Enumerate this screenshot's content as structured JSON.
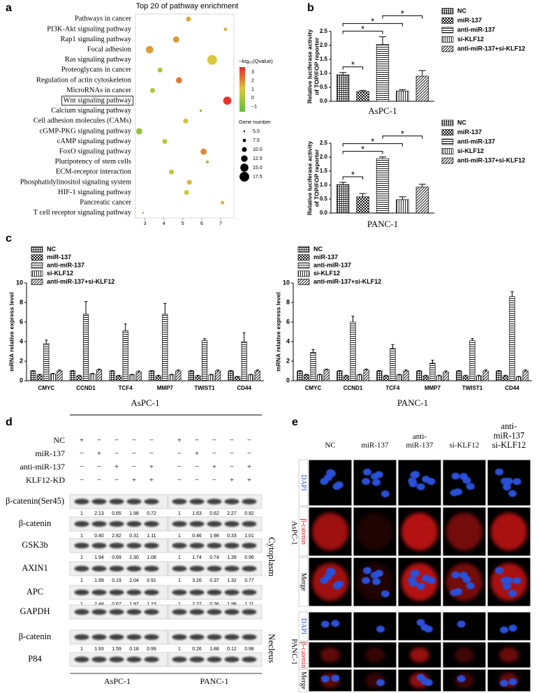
{
  "panel_labels": [
    "a",
    "b",
    "c",
    "d",
    "e"
  ],
  "chart_data": [
    {
      "type": "bubble",
      "title": "Top 20 of pathway enrichment",
      "categories": [
        "Pathways in cancer",
        "PI3K-Akt signaling pathway",
        "Rap1 signaling pathway",
        "Focal adhesion",
        "Ras signaling pathway",
        "Proteoglycans in cancer",
        "Regulation of actin cytoskeleton",
        "MicroRNAs in cancer",
        "Wnt signaling pathway",
        "Calcium signaling pathway",
        "Cell adhesion molecules (CAMs)",
        "cGMP-PKG signaling pathway",
        "cAMP signaling pathway",
        "FoxO signaling pathway",
        "Pluripotency of stem cells",
        "ECM-receptor interaction",
        "Phosphatidylinositol signaling system",
        "HIF-1 signaling pathway",
        "Pancreatic cancer",
        "T cell receptor signaling pathway"
      ],
      "x": [
        5.3,
        7.25,
        4.65,
        3.25,
        6.55,
        3.8,
        4.8,
        3.4,
        7.35,
        5.95,
        5.15,
        2.7,
        4.05,
        6.1,
        6.3,
        4.4,
        5.35,
        5.2,
        7.1,
        2.9
      ],
      "size": [
        10,
        7.5,
        12,
        14,
        17.5,
        10,
        12,
        10,
        15,
        6,
        10,
        12,
        10,
        12,
        7,
        10,
        10,
        10,
        8,
        5
      ],
      "color_values": [
        1.5,
        1.5,
        1.8,
        1.7,
        1.0,
        0,
        2.2,
        0,
        3.4,
        -0.8,
        1.2,
        -0.5,
        0.3,
        2.0,
        -0.5,
        0.5,
        1.3,
        0.7,
        1.4,
        -1.5
      ],
      "highlight": 8,
      "xlim": [
        2.5,
        7.7
      ],
      "xticks": [
        3,
        4,
        5,
        6,
        7
      ],
      "color_label": "−log₁₀(Qvalue)",
      "color_lim": [
        -1.6,
        3.6
      ],
      "color_ticks": [
        3,
        2,
        1,
        0,
        {
          "value": -1,
          "label": "−1"
        }
      ],
      "colors": [
        "#5cbf3e",
        "#d9c93a",
        "#e8242a"
      ],
      "size_label": "Gene number",
      "size_ticks": [
        {
          "value": 5,
          "label": "5.0"
        },
        {
          "value": 7.5,
          "label": "7.5"
        },
        {
          "value": 10,
          "label": "10.0"
        },
        {
          "value": 12.5,
          "label": "12.5"
        },
        {
          "value": 15,
          "label": "15.0"
        },
        {
          "value": 17.5,
          "label": "17.5"
        }
      ]
    },
    {
      "type": "bar",
      "categories": [
        "AsPC-1"
      ],
      "y_label": [
        "Relative luciferase activity",
        "of TOP/FOP reporter"
      ],
      "ylim": [
        0,
        2.5
      ],
      "yticks": [
        {
          "value": 0,
          "label": "0.0"
        },
        {
          "value": 0.5,
          "label": "0.5"
        },
        {
          "value": 1,
          "label": "1.0"
        },
        {
          "value": 1.5,
          "label": "1.5"
        },
        {
          "value": 2,
          "label": "2.0"
        },
        {
          "value": 2.5,
          "label": "2.5"
        }
      ],
      "series": [
        {
          "name": "NC",
          "pattern": "crosshatch",
          "values": [
            0.95
          ],
          "errors": [
            0.08
          ]
        },
        {
          "name": "miR-137",
          "pattern": "checker",
          "values": [
            0.35
          ],
          "errors": [
            0.04
          ]
        },
        {
          "name": "anti-miR-137",
          "pattern": "hlines",
          "values": [
            2.03
          ],
          "errors": [
            0.28
          ]
        },
        {
          "name": "si-KLF12",
          "pattern": "vlines",
          "values": [
            0.37
          ],
          "errors": [
            0.05
          ]
        },
        {
          "name": "anti-miR-137+si-KLF12",
          "pattern": "diag",
          "values": [
            0.9
          ],
          "errors": [
            0.2
          ]
        }
      ],
      "significance": [
        {
          "pair": [
            0,
            1
          ],
          "label": "*"
        },
        {
          "pair": [
            0,
            2
          ],
          "label": "*"
        },
        {
          "pair": [
            0,
            3
          ],
          "label": "*"
        },
        {
          "pair": [
            2,
            4
          ],
          "label": "*"
        }
      ]
    },
    {
      "type": "bar",
      "categories": [
        "PANC-1"
      ],
      "y_label": [
        "Relative luciferase activity",
        "of TOP/FOP reporter"
      ],
      "ylim": [
        0,
        2.5
      ],
      "yticks": [
        {
          "value": 0,
          "label": "0.0"
        },
        {
          "value": 0.5,
          "label": "0.5"
        },
        {
          "value": 1,
          "label": "1.0"
        },
        {
          "value": 1.5,
          "label": "1.5"
        },
        {
          "value": 2,
          "label": "2.0"
        },
        {
          "value": 2.5,
          "label": "2.5"
        }
      ],
      "series": [
        {
          "name": "NC",
          "pattern": "crosshatch",
          "values": [
            1.02
          ],
          "errors": [
            0.08
          ]
        },
        {
          "name": "miR-137",
          "pattern": "checker",
          "values": [
            0.58
          ],
          "errors": [
            0.12
          ]
        },
        {
          "name": "anti-miR-137",
          "pattern": "hlines",
          "values": [
            1.95
          ],
          "errors": [
            0.06
          ]
        },
        {
          "name": "si-KLF12",
          "pattern": "vlines",
          "values": [
            0.48
          ],
          "errors": [
            0.1
          ]
        },
        {
          "name": "anti-miR-137+si-KLF12",
          "pattern": "diag",
          "values": [
            0.93
          ],
          "errors": [
            0.1
          ]
        }
      ],
      "significance": [
        {
          "pair": [
            0,
            1
          ],
          "label": "*"
        },
        {
          "pair": [
            0,
            2
          ],
          "label": "*"
        },
        {
          "pair": [
            0,
            3
          ],
          "label": "*"
        },
        {
          "pair": [
            2,
            4
          ],
          "label": "*"
        }
      ]
    },
    {
      "type": "bar",
      "categories": [
        "CMYC",
        "CCND1",
        "TCF4",
        "MMP7",
        "TWIST1",
        "CD44"
      ],
      "x_label": "AsPC-1",
      "y_label": "mRNA relative express level",
      "ylim": [
        0,
        10
      ],
      "yticks": [
        0,
        2,
        4,
        6,
        8,
        10
      ],
      "series": [
        {
          "name": "NC",
          "pattern": "crosshatch",
          "values": [
            1,
            1,
            1,
            1,
            1,
            1
          ],
          "errors": [
            0.04,
            0.04,
            0.04,
            0.04,
            0.04,
            0.04
          ]
        },
        {
          "name": "miR-137",
          "pattern": "checker",
          "values": [
            0.6,
            0.5,
            0.5,
            0.5,
            0.5,
            0.4
          ],
          "errors": [
            0.05,
            0.05,
            0.05,
            0.05,
            0.05,
            0.05
          ]
        },
        {
          "name": "anti-miR-137",
          "pattern": "hlines",
          "values": [
            3.8,
            6.8,
            5.1,
            6.8,
            4.1,
            4.0
          ],
          "errors": [
            0.35,
            1.3,
            0.7,
            1.1,
            0.2,
            0.9
          ]
        },
        {
          "name": "si-KLF12",
          "pattern": "vlines",
          "values": [
            0.7,
            0.7,
            0.6,
            0.6,
            0.6,
            0.6
          ],
          "errors": [
            0.05,
            0.05,
            0.05,
            0.05,
            0.05,
            0.05
          ]
        },
        {
          "name": "anti-miR-137+si-KLF12",
          "pattern": "diag",
          "values": [
            1.0,
            1.1,
            0.9,
            1.0,
            1.0,
            1.0
          ],
          "errors": [
            0.1,
            0.1,
            0.1,
            0.1,
            0.1,
            0.1
          ]
        }
      ]
    },
    {
      "type": "bar",
      "categories": [
        "CMYC",
        "CCND1",
        "TCF4",
        "MMP7",
        "TWIST1",
        "CD44"
      ],
      "x_label": "PANC-1",
      "y_label": "mRNA relative express level",
      "ylim": [
        0,
        10
      ],
      "yticks": [
        0,
        2,
        4,
        6,
        8,
        10
      ],
      "series": [
        {
          "name": "NC",
          "pattern": "crosshatch",
          "values": [
            1,
            1,
            1,
            1,
            1,
            1
          ],
          "errors": [
            0.04,
            0.04,
            0.04,
            0.04,
            0.04,
            0.04
          ]
        },
        {
          "name": "miR-137",
          "pattern": "checker",
          "values": [
            0.6,
            0.5,
            0.5,
            0.5,
            0.5,
            0.5
          ],
          "errors": [
            0.05,
            0.05,
            0.05,
            0.05,
            0.05,
            0.05
          ]
        },
        {
          "name": "anti-miR-137",
          "pattern": "hlines",
          "values": [
            2.9,
            6.0,
            3.3,
            1.8,
            4.1,
            8.6
          ],
          "errors": [
            0.3,
            0.6,
            0.4,
            0.3,
            0.2,
            0.5
          ]
        },
        {
          "name": "si-KLF12",
          "pattern": "vlines",
          "values": [
            0.6,
            0.6,
            0.6,
            0.5,
            0.5,
            0.4
          ],
          "errors": [
            0.05,
            0.05,
            0.05,
            0.05,
            0.05,
            0.05
          ]
        },
        {
          "name": "anti-miR-137+si-KLF12",
          "pattern": "diag",
          "values": [
            1.1,
            1.1,
            1.0,
            0.9,
            1.0,
            1.0
          ],
          "errors": [
            0.1,
            0.1,
            0.1,
            0.1,
            0.1,
            0.1
          ]
        }
      ]
    }
  ],
  "western_blot": {
    "conditions": [
      {
        "name": "NC",
        "signs": [
          "+",
          "−",
          "−",
          "−",
          "−",
          "+",
          "−",
          "−",
          "−",
          "−"
        ]
      },
      {
        "name": "miR-137",
        "signs": [
          "−",
          "+",
          "−",
          "−",
          "−",
          "−",
          "+",
          "−",
          "−",
          "−"
        ]
      },
      {
        "name": "anti-miR-137",
        "signs": [
          "−",
          "−",
          "+",
          "−",
          "+",
          "−",
          "−",
          "+",
          "−",
          "+"
        ]
      },
      {
        "name": "KLF12-KD",
        "signs": [
          "−",
          "−",
          "−",
          "+",
          "+",
          "−",
          "−",
          "−",
          "+",
          "+"
        ]
      }
    ],
    "sections": [
      {
        "fraction": "Cytoplasm",
        "rows": [
          {
            "name": "β-catenin(Ser45)",
            "values": [
              "1",
              "2.13",
              "0.65",
              "1.98",
              "0.72",
              "1",
              "1.63",
              "0.62",
              "2.27",
              "0.92"
            ]
          },
          {
            "name": "β-catenin",
            "values": [
              "1",
              "0.40",
              "2.82",
              "0.31",
              "1.11",
              "1",
              "0.46",
              "1.98",
              "0.33",
              "1.01"
            ]
          },
          {
            "name": "GSK3b",
            "values": [
              "1",
              "1.94",
              "0.69",
              "1.30",
              "1.08",
              "1",
              "1.74",
              "0.74",
              "1.39",
              "0.96"
            ]
          },
          {
            "name": "AXIN1",
            "values": [
              "1",
              "1.99",
              "0.19",
              "2.04",
              "0.91",
              "1",
              "3.26",
              "0.37",
              "1.32",
              "0.77"
            ]
          },
          {
            "name": "APC",
            "values": [
              "1",
              "2.48",
              "0.67",
              "1.97",
              "1.23",
              "1",
              "2.22",
              "0.36",
              "1.98",
              "1.11"
            ]
          },
          {
            "name": "GAPDH"
          }
        ]
      },
      {
        "fraction": "Necleus",
        "rows": [
          {
            "name": "β-catenin",
            "values": [
              "1",
              "1.93",
              "1.59",
              "0.18",
              "0.99",
              "1",
              "0.26",
              "1.88",
              "0.12",
              "0.98"
            ]
          },
          {
            "name": "P84"
          }
        ]
      }
    ],
    "cell_lines": [
      "AsPC-1",
      "PANC-1"
    ]
  },
  "immunofluorescence": {
    "columns": [
      [
        "NC"
      ],
      [
        "miR-137"
      ],
      [
        "anti-",
        "miR-137"
      ],
      [
        "si-KLF12"
      ],
      [
        "anti-",
        "miR-137",
        "si-KLF12"
      ]
    ],
    "groups": [
      {
        "cell_line": "AsPC-1",
        "rows": [
          "DAPI",
          "β-catenin",
          "Merge"
        ]
      },
      {
        "cell_line": "PANC-1",
        "rows": [
          "DAPI",
          "β-catenin",
          "Merge"
        ]
      }
    ]
  }
}
